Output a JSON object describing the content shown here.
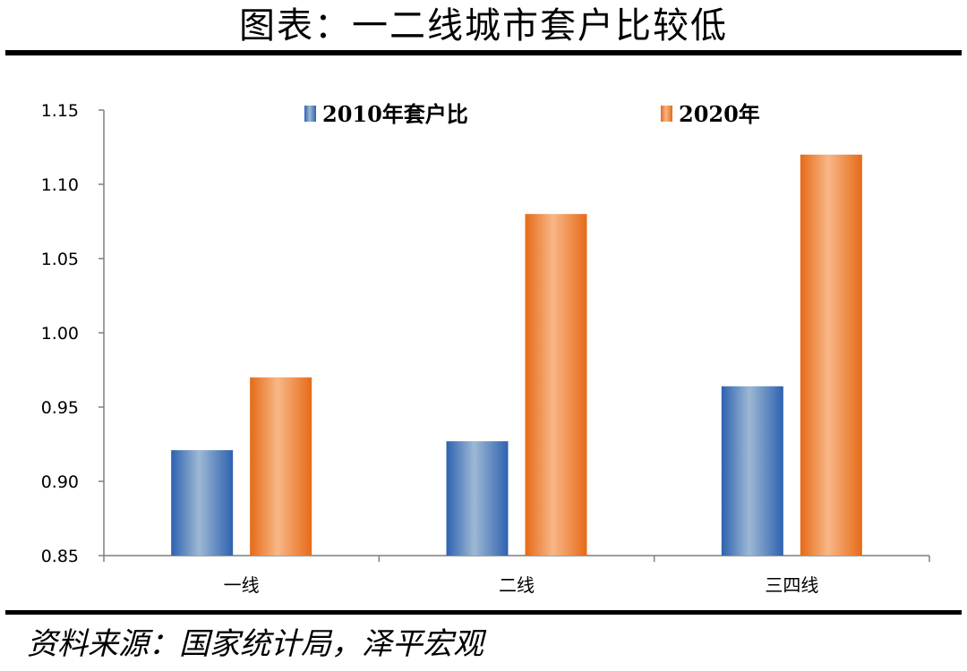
{
  "header": {
    "title": "图表：一二线城市套户比较低"
  },
  "footer": {
    "source": "资料来源：国家统计局，泽平宏观"
  },
  "colors": {
    "series_2010": "#4F81BD",
    "series_2020": "#F79646"
  },
  "chart_data": {
    "type": "bar",
    "title": "",
    "xlabel": "",
    "ylabel": "",
    "categories": [
      "一线",
      "二线",
      "三四线"
    ],
    "series": [
      {
        "name": "2010年套户比",
        "values": [
          0.921,
          0.927,
          0.964
        ]
      },
      {
        "name": "2020年",
        "values": [
          0.97,
          1.08,
          1.12
        ]
      }
    ],
    "ylim": [
      0.85,
      1.15
    ],
    "yticks": [
      "0.85",
      "0.90",
      "0.95",
      "1.00",
      "1.05",
      "1.10",
      "1.15"
    ],
    "legend_position": "top",
    "grid": false
  }
}
